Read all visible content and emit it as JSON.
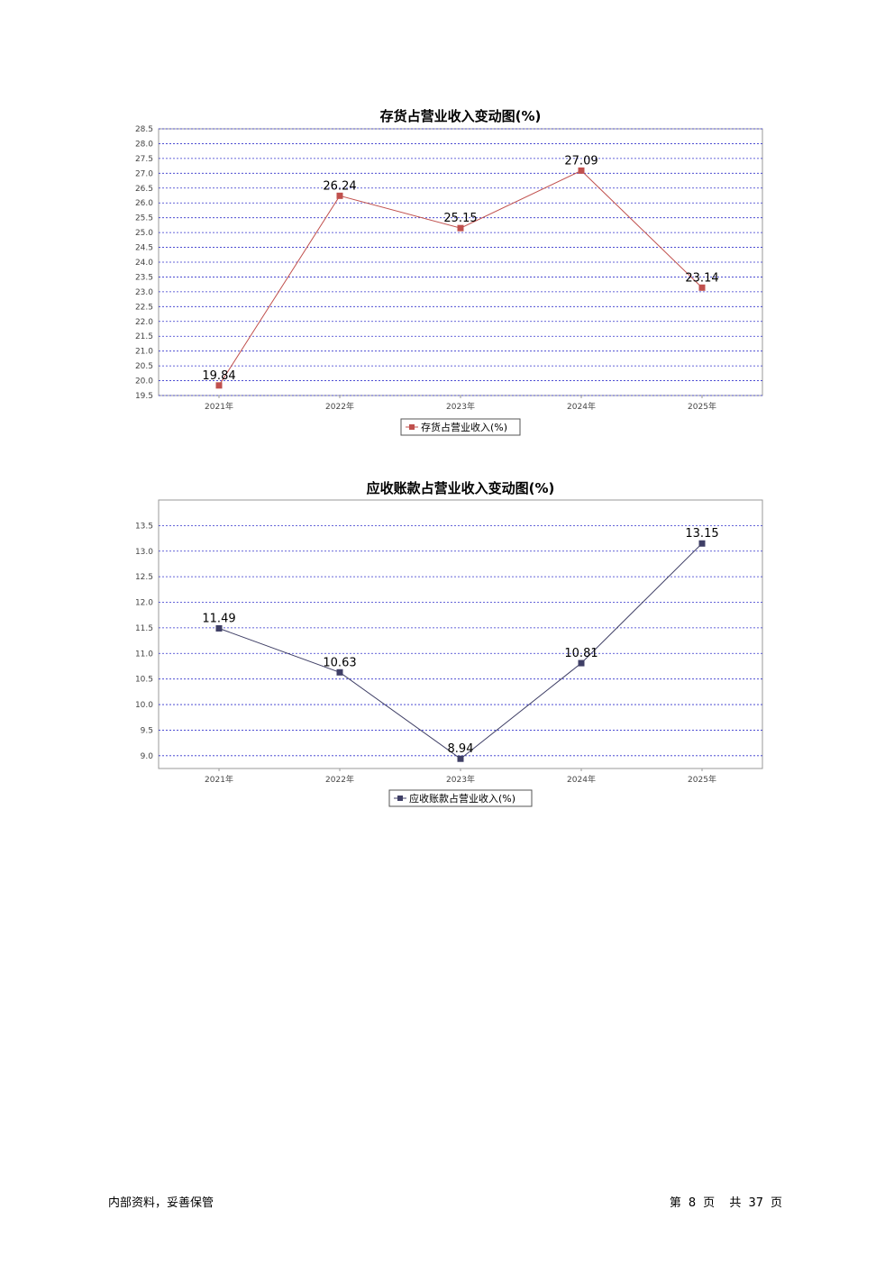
{
  "chart_data": [
    {
      "type": "line",
      "title": "存货占营业收入变动图(%)",
      "categories": [
        "2021年",
        "2022年",
        "2023年",
        "2024年",
        "2025年"
      ],
      "series": [
        {
          "name": "存货占营业收入(%)",
          "values": [
            19.84,
            26.24,
            25.15,
            27.09,
            23.14
          ],
          "color": "#c0504d"
        }
      ],
      "data_labels": [
        "19.84",
        "26.24",
        "25.15",
        "27.09",
        "23.14"
      ],
      "ylim": [
        19.5,
        28.5
      ],
      "yticks": [
        "19.5",
        "20.0",
        "20.5",
        "21.0",
        "21.5",
        "22.0",
        "22.5",
        "23.0",
        "23.5",
        "24.0",
        "24.5",
        "25.0",
        "25.5",
        "26.0",
        "26.5",
        "27.0",
        "27.5",
        "28.0",
        "28.5"
      ],
      "grid": true,
      "legend": "bottom-center"
    },
    {
      "type": "line",
      "title": "应收账款占营业收入变动图(%)",
      "categories": [
        "2021年",
        "2022年",
        "2023年",
        "2024年",
        "2025年"
      ],
      "series": [
        {
          "name": "应收账款占营业收入(%)",
          "values": [
            11.49,
            10.63,
            8.94,
            10.81,
            13.15
          ],
          "color": "#3f3f66"
        }
      ],
      "data_labels": [
        "11.49",
        "10.63",
        "8.94",
        "10.81",
        "13.15"
      ],
      "ylim": [
        8.75,
        14.0
      ],
      "yticks": [
        "9.0",
        "9.5",
        "10.0",
        "10.5",
        "11.0",
        "11.5",
        "12.0",
        "12.5",
        "13.0",
        "13.5"
      ],
      "grid": true,
      "legend": "bottom-center"
    }
  ],
  "footer": {
    "left": "内部资料，妥善保管",
    "page_prefix": "第",
    "page_num": "8",
    "page_unit": "页",
    "total_prefix": "共",
    "total_num": "37",
    "total_unit": "页"
  }
}
